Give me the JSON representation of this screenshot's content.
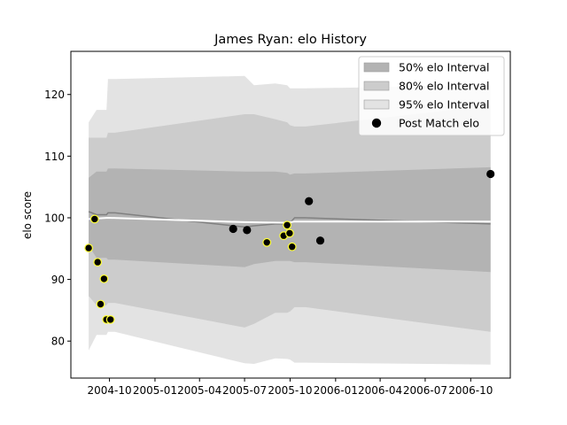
{
  "chart_data": {
    "type": "line",
    "title": "James Ryan: elo History",
    "xlabel": "",
    "ylabel": "elo score",
    "x_axis_type": "date",
    "xlim": [
      "2004-07-15",
      "2006-12-20"
    ],
    "ylim": [
      74,
      127
    ],
    "x_ticks": [
      "2004-10",
      "2005-01",
      "2005-04",
      "2005-07",
      "2005-10",
      "2006-01",
      "2006-04",
      "2006-07",
      "2006-10"
    ],
    "x_tick_dates": [
      "2004-10-01",
      "2005-01-01",
      "2005-04-01",
      "2005-07-01",
      "2005-10-01",
      "2006-01-01",
      "2006-04-01",
      "2006-07-01",
      "2006-10-01"
    ],
    "y_ticks": [
      80,
      90,
      100,
      110,
      120
    ],
    "grid": false,
    "legend_position": "top-right",
    "legend": [
      {
        "label": "50% elo Interval",
        "kind": "band",
        "color": "#b3b3b3"
      },
      {
        "label": "80% elo Interval",
        "kind": "band",
        "color": "#cccccc"
      },
      {
        "label": "95% elo Interval",
        "kind": "band",
        "color": "#e3e3e3"
      },
      {
        "label": "Post Match elo",
        "kind": "marker",
        "color": "#000000"
      }
    ],
    "colors": {
      "band_95": "#e3e3e3",
      "band_80": "#cccccc",
      "band_50": "#b3b3b3",
      "mean_line": "#808080",
      "baseline_line": "#ffffff",
      "point_fill": "#000000",
      "point_edge": "#ffff33"
    },
    "bands": {
      "dates": [
        "2004-08-20",
        "2004-09-05",
        "2004-09-25",
        "2004-09-28",
        "2004-10-10",
        "2004-10-12",
        "2005-07-01",
        "2005-07-20",
        "2005-09-01",
        "2005-09-25",
        "2005-10-01",
        "2005-10-10",
        "2005-11-01",
        "2006-11-10"
      ],
      "p95_upper": [
        115.5,
        117.5,
        117.5,
        122.5,
        122.5,
        122.5,
        123.0,
        121.5,
        121.8,
        121.5,
        121.0,
        121.0,
        121.0,
        121.5
      ],
      "p95_lower": [
        78.5,
        81.0,
        81.0,
        81.5,
        81.5,
        81.5,
        76.4,
        76.3,
        77.2,
        77.1,
        77.0,
        76.5,
        76.5,
        76.2
      ],
      "p80_upper": [
        113.0,
        113.0,
        113.0,
        113.8,
        113.8,
        113.8,
        116.8,
        116.8,
        116.0,
        115.5,
        115.0,
        114.8,
        114.8,
        118.2
      ],
      "p80_lower": [
        87.3,
        85.8,
        85.8,
        86.2,
        86.2,
        86.2,
        82.2,
        82.8,
        84.6,
        84.6,
        84.8,
        85.5,
        85.5,
        81.5
      ],
      "p50_upper": [
        106.5,
        107.5,
        107.5,
        108.0,
        108.0,
        108.0,
        107.5,
        107.5,
        107.5,
        107.3,
        107.0,
        107.2,
        107.2,
        108.2
      ],
      "p50_lower": [
        95.5,
        93.5,
        93.5,
        93.2,
        93.2,
        93.2,
        92.0,
        92.5,
        93.0,
        93.0,
        93.0,
        92.8,
        92.8,
        91.2
      ]
    },
    "series": [
      {
        "key": "mean",
        "x": [
          "2004-08-20",
          "2004-09-05",
          "2004-09-25",
          "2004-09-28",
          "2004-10-10",
          "2004-10-12",
          "2005-07-01",
          "2005-07-20",
          "2005-09-01",
          "2005-09-25",
          "2005-10-01",
          "2005-10-10",
          "2005-11-01",
          "2006-11-10"
        ],
        "y": [
          101.0,
          100.5,
          100.5,
          100.8,
          100.8,
          100.8,
          98.5,
          98.7,
          99.0,
          99.0,
          99.2,
          100.0,
          100.0,
          99.0
        ]
      },
      {
        "key": "baseline",
        "x": [
          "2004-08-20",
          "2004-09-28",
          "2005-07-01",
          "2005-09-25",
          "2005-10-10",
          "2006-11-10"
        ],
        "y": [
          99.8,
          100.0,
          99.3,
          99.2,
          99.4,
          99.4
        ]
      }
    ],
    "points": [
      {
        "date": "2004-08-20",
        "elo": 95.1,
        "edge": true
      },
      {
        "date": "2004-09-01",
        "elo": 99.8,
        "edge": true
      },
      {
        "date": "2004-09-07",
        "elo": 92.8,
        "edge": true
      },
      {
        "date": "2004-09-13",
        "elo": 86.0,
        "edge": true
      },
      {
        "date": "2004-09-20",
        "elo": 90.1,
        "edge": true
      },
      {
        "date": "2004-09-25",
        "elo": 83.5,
        "edge": true
      },
      {
        "date": "2004-10-03",
        "elo": 83.5,
        "edge": true
      },
      {
        "date": "2005-06-08",
        "elo": 98.2,
        "edge": false
      },
      {
        "date": "2005-07-06",
        "elo": 98.0,
        "edge": false
      },
      {
        "date": "2005-08-15",
        "elo": 96.0,
        "edge": true
      },
      {
        "date": "2005-09-18",
        "elo": 97.1,
        "edge": true
      },
      {
        "date": "2005-09-25",
        "elo": 98.8,
        "edge": true
      },
      {
        "date": "2005-09-30",
        "elo": 97.5,
        "edge": true
      },
      {
        "date": "2005-10-05",
        "elo": 95.3,
        "edge": true
      },
      {
        "date": "2005-11-08",
        "elo": 102.7,
        "edge": false
      },
      {
        "date": "2005-12-01",
        "elo": 96.3,
        "edge": false
      },
      {
        "date": "2006-11-10",
        "elo": 107.1,
        "edge": false
      }
    ]
  }
}
